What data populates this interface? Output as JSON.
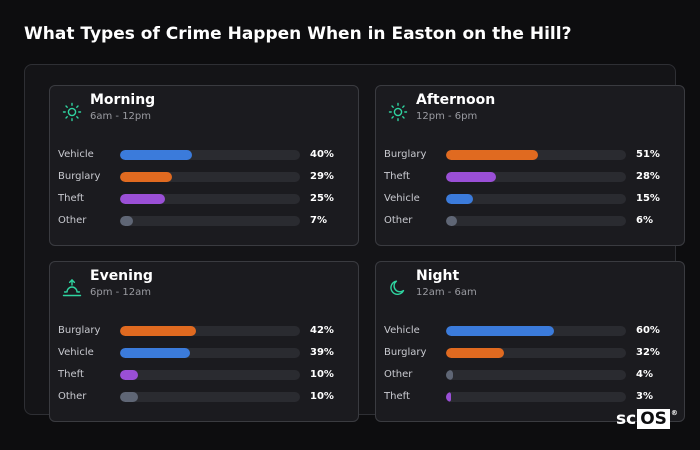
{
  "title": "What Types of Crime Happen When in Easton on the Hill?",
  "colors": {
    "Vehicle": "#3b7bdb",
    "Burglary": "#e06a20",
    "Theft": "#9a4fd6",
    "Other": "#5f6675",
    "icon": "#2fd4a0"
  },
  "cards": [
    {
      "key": "morning",
      "title": "Morning",
      "subtitle": "6am - 12pm",
      "icon": "sun-icon",
      "rows": [
        {
          "label": "Vehicle",
          "value": 40,
          "display": "40%"
        },
        {
          "label": "Burglary",
          "value": 29,
          "display": "29%"
        },
        {
          "label": "Theft",
          "value": 25,
          "display": "25%"
        },
        {
          "label": "Other",
          "value": 7,
          "display": "7%"
        }
      ]
    },
    {
      "key": "afternoon",
      "title": "Afternoon",
      "subtitle": "12pm - 6pm",
      "icon": "sun-icon",
      "rows": [
        {
          "label": "Burglary",
          "value": 51,
          "display": "51%"
        },
        {
          "label": "Theft",
          "value": 28,
          "display": "28%"
        },
        {
          "label": "Vehicle",
          "value": 15,
          "display": "15%"
        },
        {
          "label": "Other",
          "value": 6,
          "display": "6%"
        }
      ]
    },
    {
      "key": "evening",
      "title": "Evening",
      "subtitle": "6pm - 12am",
      "icon": "sunset-icon",
      "rows": [
        {
          "label": "Burglary",
          "value": 42,
          "display": "42%"
        },
        {
          "label": "Vehicle",
          "value": 39,
          "display": "39%"
        },
        {
          "label": "Theft",
          "value": 10,
          "display": "10%"
        },
        {
          "label": "Other",
          "value": 10,
          "display": "10%"
        }
      ]
    },
    {
      "key": "night",
      "title": "Night",
      "subtitle": "12am - 6am",
      "icon": "moon-icon",
      "rows": [
        {
          "label": "Vehicle",
          "value": 60,
          "display": "60%"
        },
        {
          "label": "Burglary",
          "value": 32,
          "display": "32%"
        },
        {
          "label": "Other",
          "value": 4,
          "display": "4%"
        },
        {
          "label": "Theft",
          "value": 3,
          "display": "3%"
        }
      ]
    }
  ],
  "logo": {
    "prefix": "sc",
    "boxed": "OS",
    "mark": "®"
  }
}
